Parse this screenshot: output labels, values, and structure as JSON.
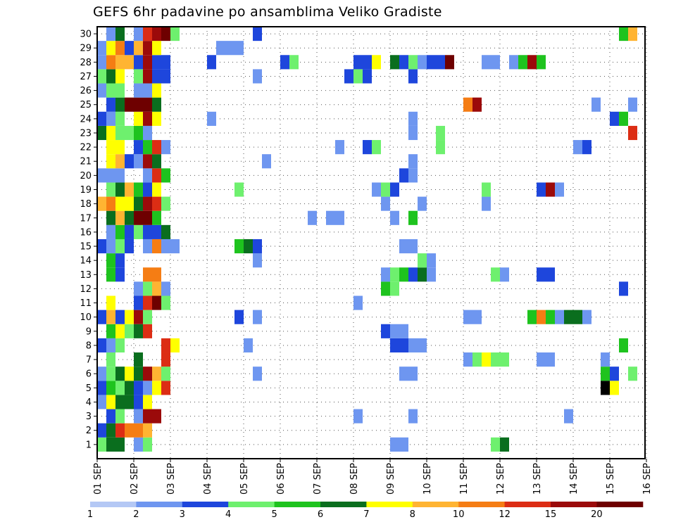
{
  "title": "GEFS 6hr padavine po ansamblima Veliko Gradiste",
  "chart_data": {
    "type": "heatmap",
    "title": "GEFS 6hr padavine po ansamblima Veliko Gradiste",
    "x_tick_labels": [
      "01 SEP",
      "02 SEP",
      "03 SEP",
      "04 SEP",
      "05 SEP",
      "06 SEP",
      "07 SEP",
      "08 SEP",
      "09 SEP",
      "10 SEP",
      "11 SEP",
      "12 SEP",
      "13 SEP",
      "14 SEP",
      "15 SEP",
      "16 SEP"
    ],
    "y_tick_labels": [
      "1",
      "2",
      "3",
      "4",
      "5",
      "6",
      "7",
      "8",
      "9",
      "10",
      "11",
      "12",
      "13",
      "14",
      "15",
      "16",
      "17",
      "18",
      "19",
      "20",
      "21",
      "22",
      "23",
      "24",
      "25",
      "26",
      "27",
      "28",
      "29",
      "30"
    ],
    "x_time_step": "6 hr",
    "y_label": "",
    "grid": "dotted",
    "colorbar": {
      "labels": [
        "1",
        "2",
        "3",
        "4",
        "5",
        "6",
        "7",
        "8",
        "10",
        "12",
        "15",
        "20"
      ],
      "colors": [
        "#b4c8f5",
        "#6e96f0",
        "#1e46dc",
        "#6ef06e",
        "#1ec31e",
        "#0a6e1e",
        "#ffff00",
        "#ffb432",
        "#f57d14",
        "#dc2d14",
        "#9b0a0a",
        "#6e0000"
      ]
    },
    "cells": [
      [
        1,
        1,
        3
      ],
      [
        1,
        2,
        5
      ],
      [
        1,
        3,
        5
      ],
      [
        1,
        5,
        1
      ],
      [
        1,
        6,
        3
      ],
      [
        1,
        33,
        1
      ],
      [
        1,
        34,
        1
      ],
      [
        1,
        44,
        3
      ],
      [
        1,
        45,
        5
      ],
      [
        2,
        1,
        2
      ],
      [
        2,
        2,
        5
      ],
      [
        2,
        3,
        9
      ],
      [
        2,
        4,
        8
      ],
      [
        2,
        5,
        8
      ],
      [
        2,
        6,
        7
      ],
      [
        3,
        2,
        2
      ],
      [
        3,
        3,
        3
      ],
      [
        3,
        5,
        1
      ],
      [
        3,
        6,
        10
      ],
      [
        3,
        7,
        10
      ],
      [
        3,
        29,
        1
      ],
      [
        3,
        35,
        1
      ],
      [
        3,
        52,
        1
      ],
      [
        4,
        1,
        1
      ],
      [
        4,
        2,
        6
      ],
      [
        4,
        3,
        5
      ],
      [
        4,
        4,
        5
      ],
      [
        4,
        5,
        2
      ],
      [
        4,
        6,
        6
      ],
      [
        5,
        1,
        2
      ],
      [
        5,
        2,
        4
      ],
      [
        5,
        3,
        3
      ],
      [
        5,
        4,
        5
      ],
      [
        5,
        5,
        2
      ],
      [
        5,
        6,
        1
      ],
      [
        5,
        7,
        6
      ],
      [
        5,
        8,
        9
      ],
      [
        5,
        56,
        12
      ],
      [
        5,
        57,
        6
      ],
      [
        6,
        1,
        1
      ],
      [
        6,
        2,
        3
      ],
      [
        6,
        3,
        5
      ],
      [
        6,
        4,
        6
      ],
      [
        6,
        5,
        5
      ],
      [
        6,
        6,
        10
      ],
      [
        6,
        7,
        7
      ],
      [
        6,
        8,
        3
      ],
      [
        6,
        18,
        1
      ],
      [
        6,
        34,
        1
      ],
      [
        6,
        35,
        1
      ],
      [
        6,
        56,
        4
      ],
      [
        6,
        57,
        2
      ],
      [
        6,
        59,
        3
      ],
      [
        7,
        2,
        3
      ],
      [
        7,
        5,
        5
      ],
      [
        7,
        8,
        9
      ],
      [
        7,
        41,
        1
      ],
      [
        7,
        42,
        3
      ],
      [
        7,
        43,
        6
      ],
      [
        7,
        44,
        3
      ],
      [
        7,
        45,
        3
      ],
      [
        7,
        49,
        1
      ],
      [
        7,
        50,
        1
      ],
      [
        7,
        56,
        1
      ],
      [
        8,
        1,
        2
      ],
      [
        8,
        2,
        1
      ],
      [
        8,
        3,
        3
      ],
      [
        8,
        8,
        9
      ],
      [
        8,
        9,
        6
      ],
      [
        8,
        17,
        1
      ],
      [
        8,
        33,
        2
      ],
      [
        8,
        34,
        2
      ],
      [
        8,
        35,
        1
      ],
      [
        8,
        36,
        1
      ],
      [
        8,
        58,
        4
      ],
      [
        9,
        2,
        4
      ],
      [
        9,
        3,
        6
      ],
      [
        9,
        4,
        3
      ],
      [
        9,
        5,
        5
      ],
      [
        9,
        6,
        9
      ],
      [
        9,
        32,
        2
      ],
      [
        9,
        33,
        1
      ],
      [
        9,
        34,
        1
      ],
      [
        10,
        1,
        2
      ],
      [
        10,
        2,
        7
      ],
      [
        10,
        3,
        2
      ],
      [
        10,
        4,
        6
      ],
      [
        10,
        5,
        10
      ],
      [
        10,
        6,
        3
      ],
      [
        10,
        16,
        2
      ],
      [
        10,
        18,
        1
      ],
      [
        10,
        41,
        1
      ],
      [
        10,
        42,
        1
      ],
      [
        10,
        48,
        4
      ],
      [
        10,
        49,
        8
      ],
      [
        10,
        50,
        4
      ],
      [
        10,
        51,
        1
      ],
      [
        10,
        52,
        5
      ],
      [
        10,
        53,
        5
      ],
      [
        10,
        54,
        1
      ],
      [
        11,
        2,
        6
      ],
      [
        11,
        5,
        2
      ],
      [
        11,
        6,
        9
      ],
      [
        11,
        7,
        11
      ],
      [
        11,
        8,
        3
      ],
      [
        11,
        29,
        1
      ],
      [
        12,
        5,
        1
      ],
      [
        12,
        6,
        3
      ],
      [
        12,
        7,
        7
      ],
      [
        12,
        8,
        1
      ],
      [
        12,
        32,
        4
      ],
      [
        12,
        33,
        3
      ],
      [
        12,
        58,
        2
      ],
      [
        13,
        2,
        4
      ],
      [
        13,
        3,
        2
      ],
      [
        13,
        6,
        8
      ],
      [
        13,
        7,
        8
      ],
      [
        13,
        32,
        1
      ],
      [
        13,
        33,
        3
      ],
      [
        13,
        34,
        4
      ],
      [
        13,
        35,
        2
      ],
      [
        13,
        36,
        5
      ],
      [
        13,
        37,
        1
      ],
      [
        13,
        44,
        3
      ],
      [
        13,
        45,
        1
      ],
      [
        13,
        49,
        2
      ],
      [
        13,
        50,
        2
      ],
      [
        14,
        2,
        4
      ],
      [
        14,
        3,
        2
      ],
      [
        14,
        18,
        1
      ],
      [
        14,
        36,
        3
      ],
      [
        14,
        37,
        1
      ],
      [
        15,
        1,
        2
      ],
      [
        15,
        2,
        1
      ],
      [
        15,
        3,
        3
      ],
      [
        15,
        4,
        2
      ],
      [
        15,
        6,
        1
      ],
      [
        15,
        7,
        8
      ],
      [
        15,
        8,
        1
      ],
      [
        15,
        9,
        1
      ],
      [
        15,
        16,
        4
      ],
      [
        15,
        17,
        5
      ],
      [
        15,
        18,
        2
      ],
      [
        15,
        34,
        1
      ],
      [
        15,
        35,
        1
      ],
      [
        16,
        2,
        1
      ],
      [
        16,
        3,
        4
      ],
      [
        16,
        4,
        2
      ],
      [
        16,
        5,
        3
      ],
      [
        16,
        6,
        2
      ],
      [
        16,
        7,
        2
      ],
      [
        16,
        8,
        5
      ],
      [
        17,
        2,
        5
      ],
      [
        17,
        3,
        7
      ],
      [
        17,
        4,
        5
      ],
      [
        17,
        5,
        11
      ],
      [
        17,
        6,
        11
      ],
      [
        17,
        7,
        4
      ],
      [
        17,
        24,
        1
      ],
      [
        17,
        26,
        1
      ],
      [
        17,
        27,
        1
      ],
      [
        17,
        33,
        1
      ],
      [
        17,
        35,
        4
      ],
      [
        18,
        1,
        7
      ],
      [
        18,
        2,
        8
      ],
      [
        18,
        3,
        6
      ],
      [
        18,
        4,
        6
      ],
      [
        18,
        5,
        5
      ],
      [
        18,
        6,
        10
      ],
      [
        18,
        7,
        9
      ],
      [
        18,
        8,
        3
      ],
      [
        18,
        32,
        1
      ],
      [
        18,
        36,
        1
      ],
      [
        18,
        43,
        1
      ],
      [
        19,
        2,
        3
      ],
      [
        19,
        3,
        5
      ],
      [
        19,
        4,
        7
      ],
      [
        19,
        5,
        4
      ],
      [
        19,
        6,
        2
      ],
      [
        19,
        7,
        6
      ],
      [
        19,
        16,
        3
      ],
      [
        19,
        31,
        1
      ],
      [
        19,
        32,
        3
      ],
      [
        19,
        33,
        2
      ],
      [
        19,
        43,
        3
      ],
      [
        19,
        49,
        2
      ],
      [
        19,
        50,
        10
      ],
      [
        19,
        51,
        1
      ],
      [
        20,
        1,
        1
      ],
      [
        20,
        2,
        1
      ],
      [
        20,
        3,
        1
      ],
      [
        20,
        6,
        1
      ],
      [
        20,
        7,
        9
      ],
      [
        20,
        8,
        4
      ],
      [
        20,
        34,
        2
      ],
      [
        20,
        35,
        1
      ],
      [
        21,
        2,
        6
      ],
      [
        21,
        3,
        7
      ],
      [
        21,
        4,
        2
      ],
      [
        21,
        5,
        1
      ],
      [
        21,
        6,
        10
      ],
      [
        21,
        7,
        5
      ],
      [
        21,
        19,
        1
      ],
      [
        21,
        35,
        1
      ],
      [
        22,
        2,
        6
      ],
      [
        22,
        3,
        6
      ],
      [
        22,
        5,
        2
      ],
      [
        22,
        6,
        4
      ],
      [
        22,
        7,
        9
      ],
      [
        22,
        8,
        1
      ],
      [
        22,
        27,
        1
      ],
      [
        22,
        30,
        2
      ],
      [
        22,
        31,
        3
      ],
      [
        22,
        38,
        3
      ],
      [
        22,
        53,
        1
      ],
      [
        22,
        54,
        2
      ],
      [
        23,
        1,
        5
      ],
      [
        23,
        2,
        6
      ],
      [
        23,
        3,
        3
      ],
      [
        23,
        4,
        3
      ],
      [
        23,
        5,
        4
      ],
      [
        23,
        6,
        1
      ],
      [
        23,
        35,
        1
      ],
      [
        23,
        38,
        3
      ],
      [
        23,
        59,
        9
      ],
      [
        24,
        1,
        2
      ],
      [
        24,
        2,
        1
      ],
      [
        24,
        3,
        3
      ],
      [
        24,
        5,
        6
      ],
      [
        24,
        6,
        10
      ],
      [
        24,
        7,
        6
      ],
      [
        24,
        13,
        1
      ],
      [
        24,
        35,
        1
      ],
      [
        24,
        57,
        2
      ],
      [
        24,
        58,
        4
      ],
      [
        25,
        2,
        2
      ],
      [
        25,
        3,
        5
      ],
      [
        25,
        4,
        11
      ],
      [
        25,
        5,
        11
      ],
      [
        25,
        6,
        11
      ],
      [
        25,
        7,
        5
      ],
      [
        25,
        41,
        8
      ],
      [
        25,
        42,
        10
      ],
      [
        25,
        55,
        1
      ],
      [
        25,
        59,
        1
      ],
      [
        26,
        1,
        1
      ],
      [
        26,
        2,
        3
      ],
      [
        26,
        3,
        3
      ],
      [
        26,
        5,
        1
      ],
      [
        26,
        6,
        1
      ],
      [
        26,
        7,
        6
      ],
      [
        27,
        1,
        3
      ],
      [
        27,
        2,
        5
      ],
      [
        27,
        3,
        6
      ],
      [
        27,
        5,
        3
      ],
      [
        27,
        6,
        10
      ],
      [
        27,
        7,
        2
      ],
      [
        27,
        8,
        2
      ],
      [
        27,
        18,
        1
      ],
      [
        27,
        28,
        2
      ],
      [
        27,
        29,
        3
      ],
      [
        27,
        30,
        2
      ],
      [
        27,
        35,
        2
      ],
      [
        28,
        1,
        1
      ],
      [
        28,
        2,
        8
      ],
      [
        28,
        3,
        7
      ],
      [
        28,
        4,
        7
      ],
      [
        28,
        5,
        2
      ],
      [
        28,
        6,
        10
      ],
      [
        28,
        7,
        2
      ],
      [
        28,
        8,
        2
      ],
      [
        28,
        13,
        2
      ],
      [
        28,
        21,
        2
      ],
      [
        28,
        22,
        3
      ],
      [
        28,
        29,
        2
      ],
      [
        28,
        30,
        2
      ],
      [
        28,
        31,
        6
      ],
      [
        28,
        33,
        5
      ],
      [
        28,
        34,
        2
      ],
      [
        28,
        35,
        3
      ],
      [
        28,
        36,
        1
      ],
      [
        28,
        37,
        2
      ],
      [
        28,
        38,
        2
      ],
      [
        28,
        39,
        11
      ],
      [
        28,
        43,
        1
      ],
      [
        28,
        44,
        1
      ],
      [
        28,
        46,
        1
      ],
      [
        28,
        47,
        4
      ],
      [
        28,
        48,
        10
      ],
      [
        28,
        49,
        4
      ],
      [
        29,
        1,
        1
      ],
      [
        29,
        2,
        6
      ],
      [
        29,
        3,
        8
      ],
      [
        29,
        4,
        2
      ],
      [
        29,
        5,
        7
      ],
      [
        29,
        6,
        10
      ],
      [
        29,
        7,
        6
      ],
      [
        29,
        14,
        1
      ],
      [
        29,
        15,
        1
      ],
      [
        29,
        16,
        1
      ],
      [
        30,
        2,
        1
      ],
      [
        30,
        3,
        5
      ],
      [
        30,
        5,
        1
      ],
      [
        30,
        6,
        9
      ],
      [
        30,
        7,
        10
      ],
      [
        30,
        8,
        11
      ],
      [
        30,
        9,
        3
      ],
      [
        30,
        18,
        2
      ],
      [
        30,
        58,
        4
      ],
      [
        30,
        59,
        7
      ]
    ]
  }
}
